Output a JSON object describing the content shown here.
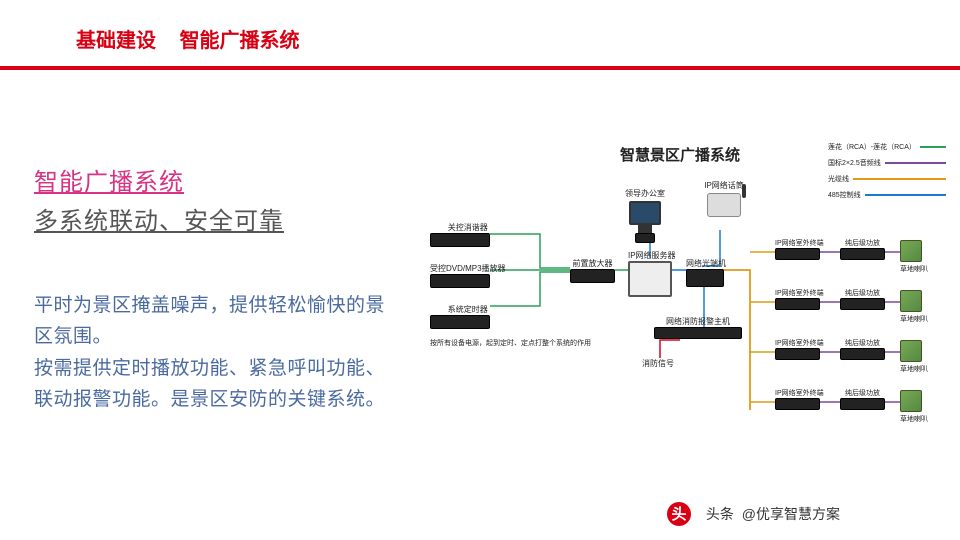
{
  "header": {
    "crumb1": "基础建设",
    "crumb2": "智能广播系统",
    "color": "#d80012",
    "fontsize": 20
  },
  "rule_color": "#d80012",
  "left": {
    "title": "智能广播系统",
    "title_color": "#d63384",
    "subtitle": "多系统联动、安全可靠",
    "subtitle_color": "#555555",
    "body": "平时为景区掩盖噪声，提供轻松愉快的景区氛围。\n按需提供定时播放功能、紧急呼叫功能、联动报警功能。是景区安防的关键系统。",
    "body_color": "#4a6aa0"
  },
  "diagram": {
    "title": "智慧景区广播系统",
    "legend": [
      {
        "text": "莲花（RCA）-莲花（RCA）",
        "color": "#2aa05a"
      },
      {
        "text": "国标2×2.5音频线",
        "color": "#7a4aa0"
      },
      {
        "text": "光缆线",
        "color": "#e09a1a"
      },
      {
        "text": "485控制线",
        "color": "#1a7ad0"
      }
    ],
    "left_stack": [
      {
        "name": "关控消谐器"
      },
      {
        "name": "受控DVD/MP3播放器"
      },
      {
        "name": "系统定时器"
      }
    ],
    "left_caption": "按所有设备电源，起到定时、定点打整个系统的作用",
    "center": {
      "amp": "前置放大器",
      "server": "IP网络服务器",
      "alarm": "网络消防报警主机",
      "alarm_signal": "消防信号",
      "office": "领导办公室",
      "mic": "IP网络话筒",
      "switch": "网络光端机"
    },
    "right_rows": [
      {
        "terminal": "IP网络室外终端",
        "amp": "纯后级功放",
        "spk": "草地喇叭"
      },
      {
        "terminal": "IP网络室外终端",
        "amp": "纯后级功放",
        "spk": "草地喇叭"
      },
      {
        "terminal": "IP网络室外终端",
        "amp": "纯后级功放",
        "spk": "草地喇叭"
      },
      {
        "terminal": "IP网络室外终端",
        "amp": "纯后级功放",
        "spk": "草地喇叭"
      }
    ],
    "colors": {
      "line_green": "#2aa05a",
      "line_blue": "#1a7ad0",
      "line_orange": "#e09a1a",
      "line_purple": "#7a4aa0",
      "device_body": "#1c1c1c"
    }
  },
  "footer": {
    "prefix": "头条",
    "account": "@优享智慧方案",
    "dot_color": "#d80012"
  }
}
